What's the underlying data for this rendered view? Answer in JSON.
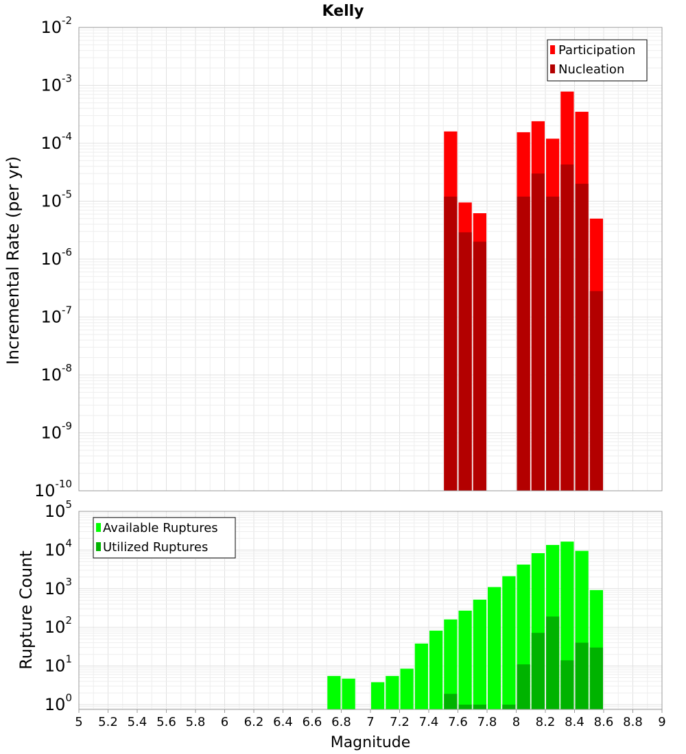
{
  "title": "Kelly",
  "colors": {
    "participation": "#ff0000",
    "nucleation": "#b30000",
    "available": "#00ff00",
    "utilized": "#00b300"
  },
  "chart_data": [
    {
      "type": "bar",
      "scale": "log",
      "title": "Kelly",
      "xlabel": "Magnitude",
      "ylabel": "Incremental Rate (per yr)",
      "xlim": [
        5,
        9
      ],
      "ylim": [
        1e-10,
        0.01
      ],
      "yticks": [
        {
          "base": "10",
          "exp": "-2"
        },
        {
          "base": "10",
          "exp": "-3"
        },
        {
          "base": "10",
          "exp": "-4"
        },
        {
          "base": "10",
          "exp": "-5"
        },
        {
          "base": "10",
          "exp": "-6"
        },
        {
          "base": "10",
          "exp": "-7"
        },
        {
          "base": "10",
          "exp": "-8"
        },
        {
          "base": "10",
          "exp": "-9"
        },
        {
          "base": "10",
          "exp": "-10"
        }
      ],
      "legend": {
        "placement": "top-right",
        "entries": [
          "Participation",
          "Nucleation"
        ]
      },
      "series": [
        {
          "name": "Participation",
          "x": [
            7.55,
            7.65,
            7.75,
            8.05,
            8.15,
            8.25,
            8.35,
            8.45,
            8.55
          ],
          "values": [
            0.00016,
            9.5e-06,
            6.2e-06,
            0.000155,
            0.00024,
            0.00012,
            0.00078,
            0.00035,
            5e-06
          ]
        },
        {
          "name": "Nucleation",
          "x": [
            7.55,
            7.65,
            7.75,
            8.05,
            8.15,
            8.25,
            8.35,
            8.45,
            8.55
          ],
          "values": [
            1.2e-05,
            2.9e-06,
            2e-06,
            1.2e-05,
            3e-05,
            1.2e-05,
            4.3e-05,
            2e-05,
            2.8e-07
          ]
        }
      ]
    },
    {
      "type": "bar",
      "scale": "log",
      "xlabel": "Magnitude",
      "ylabel": "Rupture Count",
      "xlim": [
        5,
        9
      ],
      "ylim": [
        0.75,
        100000
      ],
      "xticks": [
        "5",
        "5.2",
        "5.4",
        "5.6",
        "5.8",
        "6",
        "6.2",
        "6.4",
        "6.6",
        "6.8",
        "7",
        "7.2",
        "7.4",
        "7.6",
        "7.8",
        "8",
        "8.2",
        "8.4",
        "8.6",
        "8.8",
        "9"
      ],
      "yticks": [
        {
          "base": "10",
          "exp": "5"
        },
        {
          "base": "10",
          "exp": "4"
        },
        {
          "base": "10",
          "exp": "3"
        },
        {
          "base": "10",
          "exp": "2"
        },
        {
          "base": "10",
          "exp": "1"
        },
        {
          "base": "10",
          "exp": "0"
        }
      ],
      "legend": {
        "placement": "top-left",
        "entries": [
          "Available Ruptures",
          "Utilized Ruptures"
        ]
      },
      "series": [
        {
          "name": "Available Ruptures",
          "x": [
            6.75,
            6.85,
            7.05,
            7.15,
            7.25,
            7.35,
            7.45,
            7.55,
            7.65,
            7.75,
            7.85,
            7.95,
            8.05,
            8.15,
            8.25,
            8.35,
            8.45,
            8.55
          ],
          "values": [
            5.5,
            4.7,
            3.8,
            5.5,
            8.5,
            38,
            82,
            160,
            270,
            520,
            1100,
            2100,
            4200,
            8300,
            13500,
            16500,
            9500,
            920
          ]
        },
        {
          "name": "Utilized Ruptures",
          "x": [
            7.55,
            7.65,
            7.75,
            7.95,
            8.05,
            8.15,
            8.25,
            8.35,
            8.45,
            8.55
          ],
          "values": [
            1.9,
            1.0,
            1.0,
            1.0,
            11,
            72,
            190,
            14,
            40,
            30
          ]
        }
      ]
    }
  ]
}
